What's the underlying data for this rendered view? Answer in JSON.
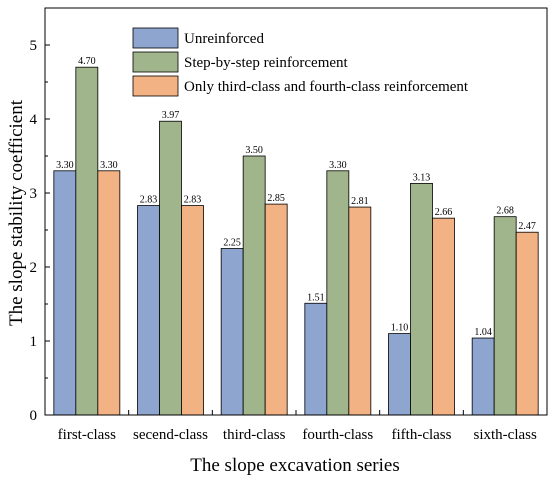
{
  "chart_data": {
    "type": "bar",
    "xlabel": "The slope excavation series",
    "ylabel": "The slope stability coefficient",
    "categories": [
      "first-class",
      "secend-class",
      "third-class",
      "fourth-class",
      "fifth-class",
      "sixth-class"
    ],
    "ylim": [
      0,
      5.5
    ],
    "yticks": [
      0,
      1,
      2,
      3,
      4,
      5
    ],
    "legend_position": "top-right",
    "grid": false,
    "series": [
      {
        "name": "Unreinforced",
        "color": "#8ea5d0",
        "values": [
          3.3,
          2.83,
          2.25,
          1.51,
          1.1,
          1.04
        ],
        "value_labels": [
          "3.30",
          "2.83",
          "2.25",
          "1.51",
          "1.10",
          "1.04"
        ]
      },
      {
        "name": "Step-by-step reinforcement",
        "color": "#a0b58b",
        "values": [
          4.7,
          3.97,
          3.5,
          3.3,
          3.13,
          2.68
        ],
        "value_labels": [
          "4.70",
          "3.97",
          "3.50",
          "3.30",
          "3.13",
          "2.68"
        ]
      },
      {
        "name": "Only third-class and fourth-class reinforcement",
        "color": "#f2b283",
        "values": [
          3.3,
          2.83,
          2.85,
          2.81,
          2.66,
          2.47
        ],
        "value_labels": [
          "3.30",
          "2.83",
          "2.85",
          "2.81",
          "2.66",
          "2.47"
        ]
      }
    ]
  }
}
